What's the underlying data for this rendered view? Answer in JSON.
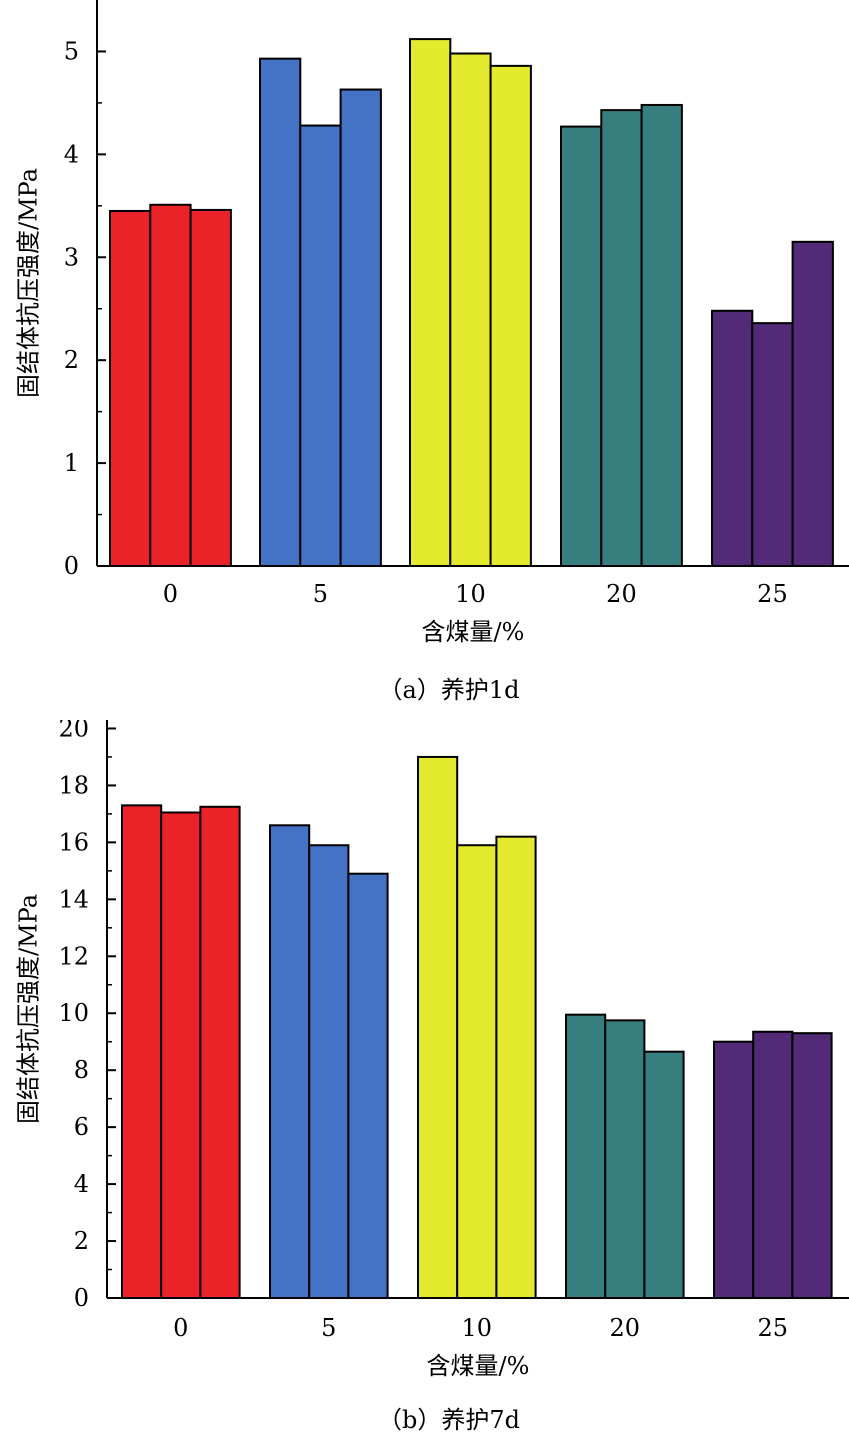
{
  "chart_data": [
    {
      "type": "bar",
      "caption": "（a）养护1d",
      "xlabel": "含煤量/%",
      "ylabel": "固结体抗压强度/MPa",
      "categories": [
        "0",
        "5",
        "10",
        "20",
        "25"
      ],
      "values": [
        [
          3.45,
          3.51,
          3.46
        ],
        [
          4.93,
          4.28,
          4.63
        ],
        [
          5.12,
          4.98,
          4.86
        ],
        [
          4.27,
          4.43,
          4.48
        ],
        [
          2.48,
          2.36,
          3.15
        ]
      ],
      "ylim": [
        0,
        5.5
      ],
      "yticks": [
        "0",
        "1",
        "2",
        "3",
        "4",
        "5"
      ],
      "grid": false,
      "legend": "none"
    },
    {
      "type": "bar",
      "caption": "（b）养护7d",
      "xlabel": "含煤量/%",
      "ylabel": "固结体抗压强度/MPa",
      "categories": [
        "0",
        "5",
        "10",
        "20",
        "25"
      ],
      "values": [
        [
          17.3,
          17.05,
          17.25
        ],
        [
          16.6,
          15.9,
          14.9
        ],
        [
          19.0,
          15.9,
          16.2
        ],
        [
          9.95,
          9.75,
          8.65
        ],
        [
          9.0,
          9.35,
          9.3
        ]
      ],
      "ylim": [
        0,
        21
      ],
      "yticks": [
        "0",
        "2",
        "4",
        "6",
        "8",
        "10",
        "12",
        "14",
        "16",
        "18",
        "20"
      ],
      "grid": false,
      "legend": "none"
    }
  ],
  "colors": {
    "group_colors": [
      "#ec2229",
      "#4472c4",
      "#e4eb2f",
      "#377e7f",
      "#522a77"
    ],
    "outline": "#000000"
  }
}
